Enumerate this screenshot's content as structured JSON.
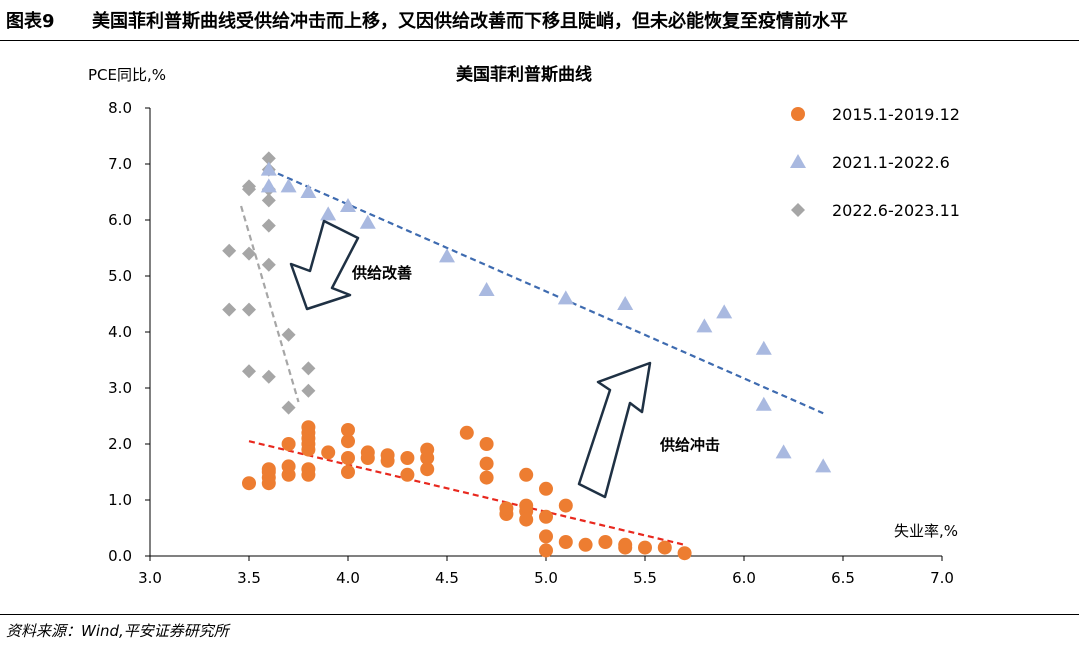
{
  "figure": {
    "number": "图表9",
    "title": "美国菲利普斯曲线受供给冲击而上移，又因供给改善而下移且陡峭，但未必能恢复至疫情前水平",
    "source": "资料来源：Wind,平安证券研究所"
  },
  "chart_data": {
    "type": "scatter",
    "title": "美国菲利普斯曲线",
    "xlabel": "失业率,%",
    "ylabel": "PCE同比,%",
    "xlim": [
      3.0,
      7.0
    ],
    "ylim": [
      0.0,
      8.0
    ],
    "xticks": [
      "3.0",
      "3.5",
      "4.0",
      "4.5",
      "5.0",
      "5.5",
      "6.0",
      "6.5",
      "7.0"
    ],
    "yticks": [
      "0.0",
      "1.0",
      "2.0",
      "3.0",
      "4.0",
      "5.0",
      "6.0",
      "7.0",
      "8.0"
    ],
    "legend_position": "top-right",
    "grid": false,
    "series": [
      {
        "name": "2015.1-2019.12",
        "marker": "circle",
        "color": "#ED7D31",
        "points": [
          [
            3.5,
            1.3
          ],
          [
            3.6,
            1.3
          ],
          [
            3.6,
            1.4
          ],
          [
            3.6,
            1.5
          ],
          [
            3.6,
            1.55
          ],
          [
            3.7,
            1.45
          ],
          [
            3.7,
            1.6
          ],
          [
            3.7,
            2.0
          ],
          [
            3.8,
            1.45
          ],
          [
            3.8,
            1.55
          ],
          [
            3.8,
            1.9
          ],
          [
            3.8,
            2.0
          ],
          [
            3.8,
            2.1
          ],
          [
            3.8,
            2.2
          ],
          [
            3.8,
            2.3
          ],
          [
            3.9,
            1.85
          ],
          [
            4.0,
            1.5
          ],
          [
            4.0,
            1.75
          ],
          [
            4.0,
            2.05
          ],
          [
            4.0,
            2.25
          ],
          [
            4.1,
            1.75
          ],
          [
            4.1,
            1.85
          ],
          [
            4.2,
            1.7
          ],
          [
            4.2,
            1.8
          ],
          [
            4.3,
            1.45
          ],
          [
            4.3,
            1.75
          ],
          [
            4.4,
            1.55
          ],
          [
            4.4,
            1.75
          ],
          [
            4.4,
            1.9
          ],
          [
            4.6,
            2.2
          ],
          [
            4.7,
            1.4
          ],
          [
            4.7,
            1.65
          ],
          [
            4.7,
            2.0
          ],
          [
            4.8,
            0.75
          ],
          [
            4.8,
            0.85
          ],
          [
            4.9,
            0.65
          ],
          [
            4.9,
            0.8
          ],
          [
            4.9,
            0.9
          ],
          [
            4.9,
            1.45
          ],
          [
            5.0,
            0.1
          ],
          [
            5.0,
            0.35
          ],
          [
            5.0,
            0.7
          ],
          [
            5.0,
            1.2
          ],
          [
            5.1,
            0.25
          ],
          [
            5.1,
            0.9
          ],
          [
            5.2,
            0.2
          ],
          [
            5.3,
            0.25
          ],
          [
            5.4,
            0.15
          ],
          [
            5.4,
            0.2
          ],
          [
            5.5,
            0.15
          ],
          [
            5.6,
            0.15
          ],
          [
            5.7,
            0.05
          ]
        ]
      },
      {
        "name": "2021.1-2022.6",
        "marker": "triangle",
        "color": "#A9B9E0",
        "points": [
          [
            3.6,
            6.9
          ],
          [
            3.6,
            6.6
          ],
          [
            3.7,
            6.6
          ],
          [
            3.8,
            6.5
          ],
          [
            3.9,
            6.1
          ],
          [
            4.0,
            6.25
          ],
          [
            4.1,
            5.95
          ],
          [
            4.5,
            5.35
          ],
          [
            4.7,
            4.75
          ],
          [
            5.1,
            4.6
          ],
          [
            5.4,
            4.5
          ],
          [
            5.8,
            4.1
          ],
          [
            5.9,
            4.35
          ],
          [
            6.1,
            3.7
          ],
          [
            6.1,
            2.7
          ],
          [
            6.2,
            1.85
          ],
          [
            6.4,
            1.6
          ]
        ]
      },
      {
        "name": "2022.6-2023.11",
        "marker": "diamond",
        "color": "#A6A6A6",
        "points": [
          [
            3.6,
            7.1
          ],
          [
            3.6,
            6.9
          ],
          [
            3.5,
            6.6
          ],
          [
            3.5,
            6.55
          ],
          [
            3.6,
            6.55
          ],
          [
            3.6,
            6.35
          ],
          [
            3.6,
            5.9
          ],
          [
            3.4,
            5.45
          ],
          [
            3.5,
            5.4
          ],
          [
            3.6,
            5.2
          ],
          [
            3.4,
            4.4
          ],
          [
            3.5,
            4.4
          ],
          [
            3.7,
            3.95
          ],
          [
            3.5,
            3.3
          ],
          [
            3.6,
            3.2
          ],
          [
            3.8,
            3.35
          ],
          [
            3.8,
            2.95
          ],
          [
            3.7,
            2.65
          ]
        ]
      }
    ],
    "trendlines": [
      {
        "series": "2015.1-2019.12",
        "color": "#E8281E",
        "from": [
          3.5,
          2.05
        ],
        "to": [
          5.7,
          0.2
        ]
      },
      {
        "series": "2021.1-2022.6",
        "color": "#3E6BB0",
        "from": [
          3.6,
          6.9
        ],
        "to": [
          6.4,
          2.55
        ]
      },
      {
        "series": "2022.6-2023.11",
        "color": "#A6A6A6",
        "from": [
          3.46,
          6.25
        ],
        "to": [
          3.75,
          2.75
        ]
      }
    ],
    "annotations": [
      {
        "text": "供给改善",
        "arrow": "down"
      },
      {
        "text": "供给冲击",
        "arrow": "up"
      }
    ]
  }
}
